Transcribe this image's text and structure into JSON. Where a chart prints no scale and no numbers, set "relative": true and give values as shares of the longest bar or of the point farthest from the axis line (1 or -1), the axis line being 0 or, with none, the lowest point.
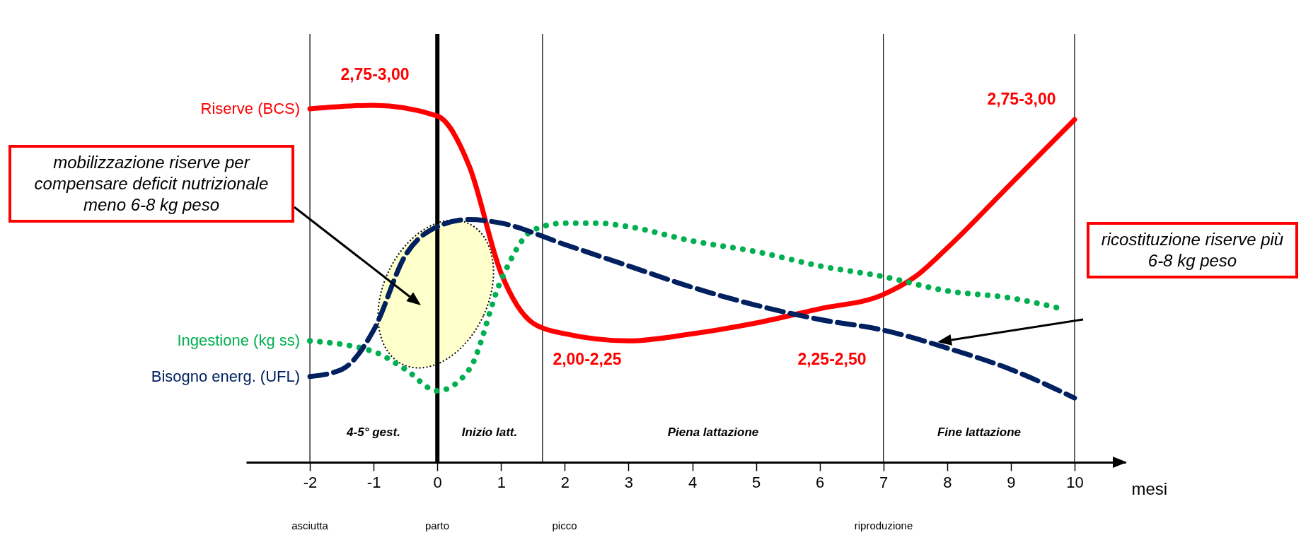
{
  "chart_data": {
    "type": "line",
    "relative": true,
    "xlabel": "mesi",
    "legend": false,
    "xlim": [
      -3,
      10.8
    ],
    "xticks": [
      {
        "value": -2,
        "label": "-2"
      },
      {
        "value": -1,
        "label": "-1"
      },
      {
        "value": 0,
        "label": "0"
      },
      {
        "value": 1,
        "label": "1"
      },
      {
        "value": 2,
        "label": "2"
      },
      {
        "value": 3,
        "label": "3"
      },
      {
        "value": 4,
        "label": "4"
      },
      {
        "value": 5,
        "label": "5"
      },
      {
        "value": 6,
        "label": "6"
      },
      {
        "value": 7,
        "label": "7"
      },
      {
        "value": 8,
        "label": "8"
      },
      {
        "value": 9,
        "label": "9"
      },
      {
        "value": 10,
        "label": "10"
      }
    ],
    "series": [
      {
        "name": "Riserve (BCS)",
        "color": "#ff0000",
        "line_style": "solid",
        "x": [
          -2,
          -1,
          0,
          0.5,
          1,
          1.5,
          2,
          3,
          4,
          5,
          6,
          7,
          7.5,
          8,
          9,
          10
        ],
        "values": [
          0.99,
          1.0,
          0.97,
          0.83,
          0.53,
          0.39,
          0.36,
          0.34,
          0.36,
          0.39,
          0.43,
          0.47,
          0.52,
          0.6,
          0.78,
          0.96
        ]
      },
      {
        "name": "Ingestione (kg ss)",
        "color": "#00b050",
        "line_style": "dotted",
        "x": [
          -2,
          -1,
          -0.5,
          0,
          0.5,
          1,
          1.5,
          2,
          2.5,
          3,
          4,
          5,
          6,
          7,
          8,
          9,
          9.8
        ],
        "values": [
          0.34,
          0.31,
          0.26,
          0.2,
          0.26,
          0.51,
          0.65,
          0.67,
          0.67,
          0.66,
          0.62,
          0.59,
          0.55,
          0.52,
          0.48,
          0.46,
          0.43
        ]
      },
      {
        "name": "Bisogno energ. (UFL)",
        "color": "#002060",
        "line_style": "dashed",
        "x": [
          -2,
          -1.5,
          -1,
          -0.5,
          0,
          0.5,
          1,
          2,
          3,
          4,
          5,
          6,
          7,
          8,
          9,
          10
        ],
        "values": [
          0.24,
          0.26,
          0.37,
          0.58,
          0.66,
          0.68,
          0.67,
          0.61,
          0.55,
          0.49,
          0.44,
          0.4,
          0.37,
          0.32,
          0.26,
          0.18
        ]
      }
    ],
    "ref_lines": [
      {
        "axis": "x",
        "value": -2
      },
      {
        "axis": "x",
        "value": 0
      },
      {
        "axis": "x",
        "value": 1.65
      },
      {
        "axis": "x",
        "value": 7
      },
      {
        "axis": "x",
        "value": 10
      }
    ],
    "annotations": [
      "2,75-3,00",
      "2,75-3,00",
      "2,00-2,25",
      "2,25-2,50",
      "4-5° gest.",
      "Inizio latt.",
      "Piena lattazione",
      "Fine lattazione",
      "asciutta",
      "parto",
      "picco",
      "riproduzione",
      "mobilizzazione riserve per compensare deficit nutrizionale meno 6-8 kg peso",
      "ricostituzione riserve più 6-8 kg peso"
    ]
  }
}
